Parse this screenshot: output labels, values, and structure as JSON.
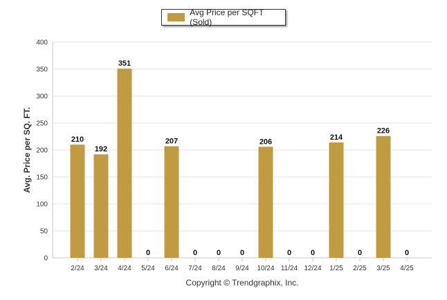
{
  "chart_data": {
    "type": "bar",
    "categories": [
      "2/24",
      "3/24",
      "4/24",
      "5/24",
      "6/24",
      "7/24",
      "8/24",
      "9/24",
      "10/24",
      "11/24",
      "12/24",
      "1/25",
      "2/25",
      "3/25",
      "4/25"
    ],
    "series": [
      {
        "name": "Avg Price per SQFT (Sold)",
        "values": [
          210,
          192,
          351,
          0,
          207,
          0,
          0,
          0,
          206,
          0,
          0,
          214,
          0,
          226,
          0
        ]
      }
    ],
    "ylabel": "Avg. Price per SQ. FT.",
    "xlabel": "",
    "ylim": [
      0,
      400
    ],
    "yticks": [
      0,
      50,
      100,
      150,
      200,
      250,
      300,
      350,
      400
    ],
    "grid": true,
    "legend_position": "top-center",
    "bar_color": "#c19b42"
  },
  "footer": "Copyright © Trendgraphix, Inc."
}
